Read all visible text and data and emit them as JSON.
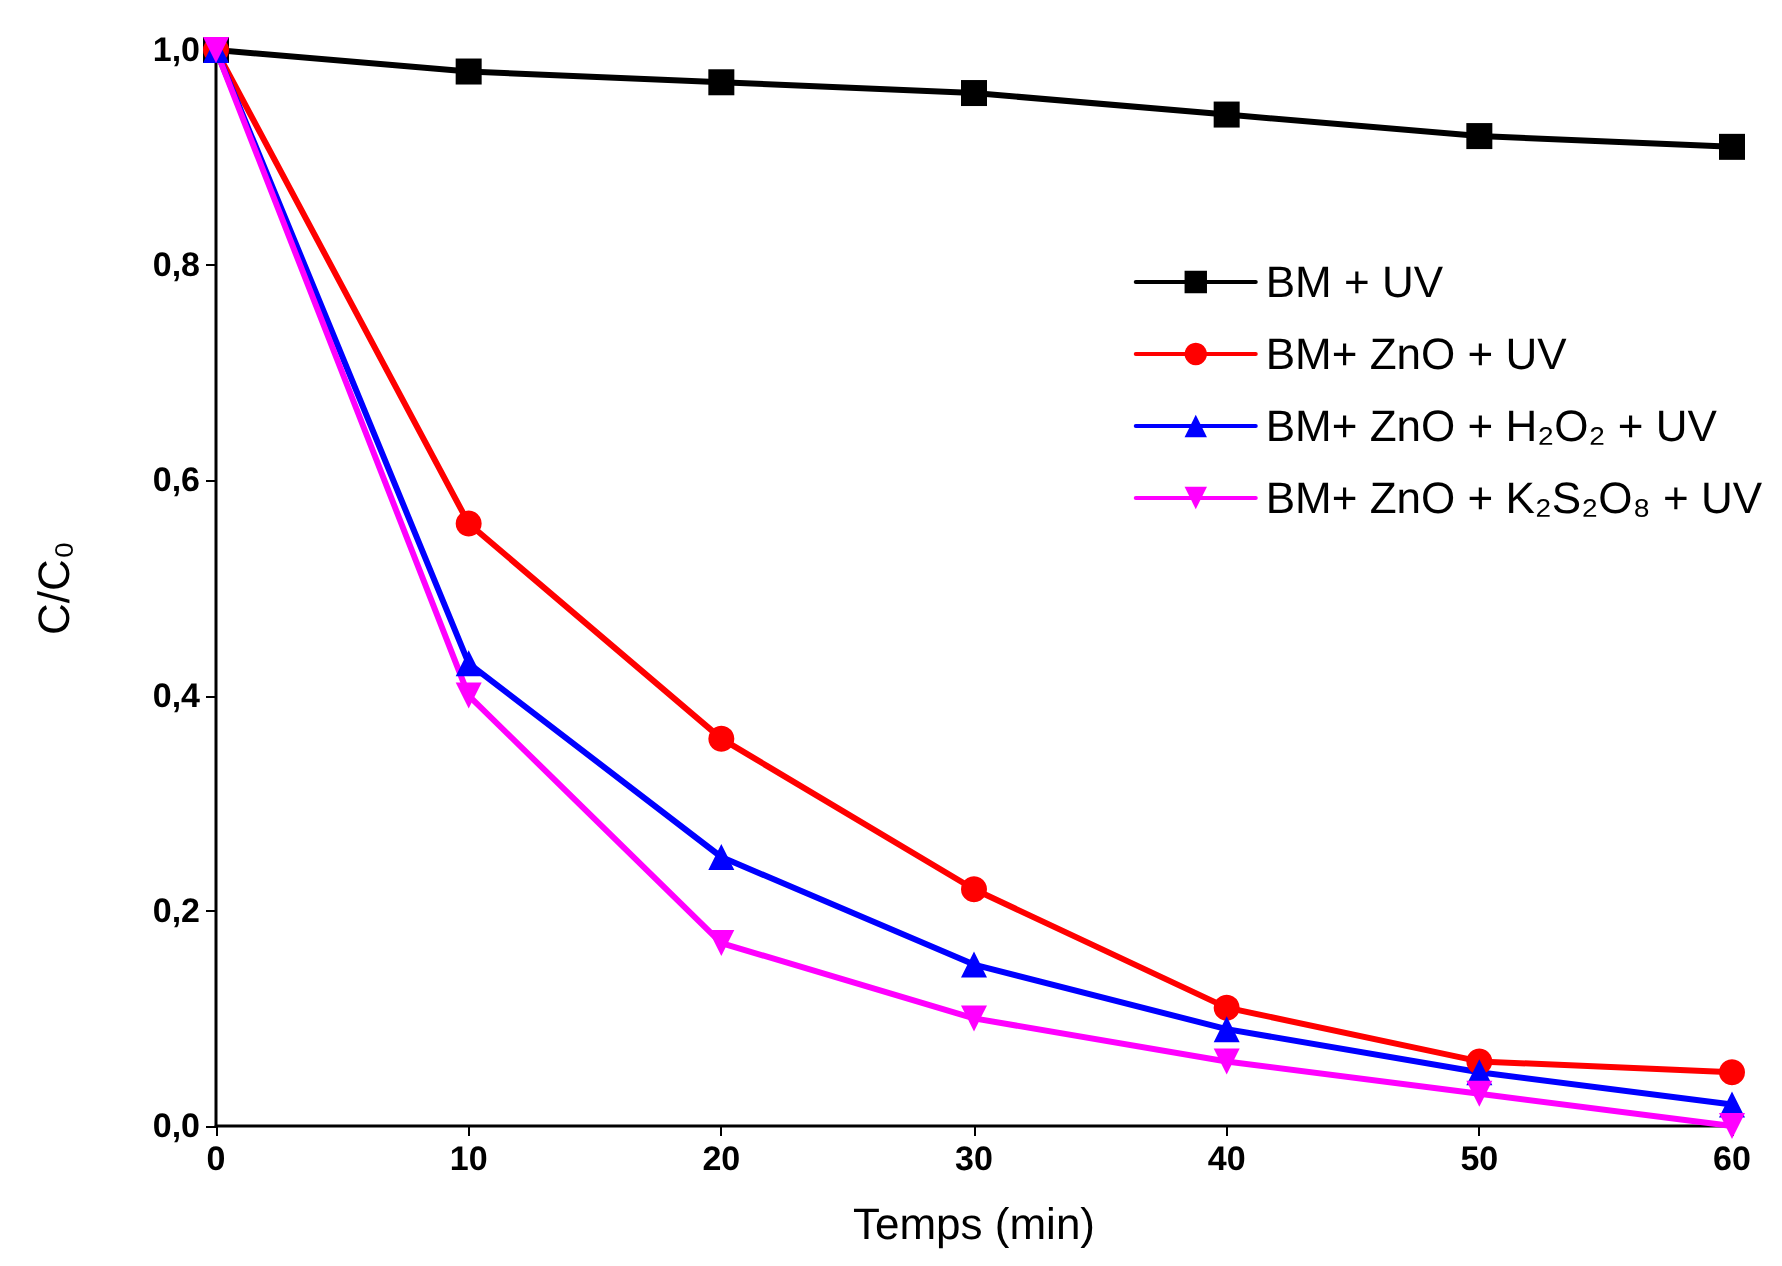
{
  "chart_data": {
    "type": "line",
    "xlabel": "Temps (min)",
    "ylabel": "C/C₀",
    "x": [
      0,
      10,
      20,
      30,
      40,
      50,
      60
    ],
    "series": [
      {
        "name": "BM + UV",
        "color": "#000000",
        "marker": "square",
        "values": [
          1.0,
          0.98,
          0.97,
          0.96,
          0.94,
          0.92,
          0.91
        ]
      },
      {
        "name": "BM+ ZnO + UV",
        "color": "#ff0000",
        "marker": "circle",
        "values": [
          1.0,
          0.56,
          0.36,
          0.22,
          0.11,
          0.06,
          0.05
        ]
      },
      {
        "name": "BM+ ZnO + H₂O₂ + UV",
        "color": "#0000ff",
        "marker": "triangle",
        "values": [
          1.0,
          0.43,
          0.25,
          0.15,
          0.09,
          0.05,
          0.02
        ]
      },
      {
        "name": "BM+ ZnO + K₂S₂O₈ + UV",
        "color": "#ff00ff",
        "marker": "triangle-down",
        "values": [
          1.0,
          0.4,
          0.17,
          0.1,
          0.06,
          0.03,
          0.0
        ]
      }
    ],
    "xlim": [
      0,
      60
    ],
    "xticks": [
      0,
      10,
      20,
      30,
      40,
      50,
      60
    ],
    "ylim": [
      0,
      1
    ],
    "yticks": [
      {
        "value": 0,
        "label": "0,0"
      },
      {
        "value": 0.2,
        "label": "0,2"
      },
      {
        "value": 0.4,
        "label": "0,4"
      },
      {
        "value": 0.6,
        "label": "0,6"
      },
      {
        "value": 0.8,
        "label": "0,8"
      },
      {
        "value": 1,
        "label": "1,0"
      }
    ],
    "grid": false,
    "legend": "right",
    "line_style": "solid"
  }
}
